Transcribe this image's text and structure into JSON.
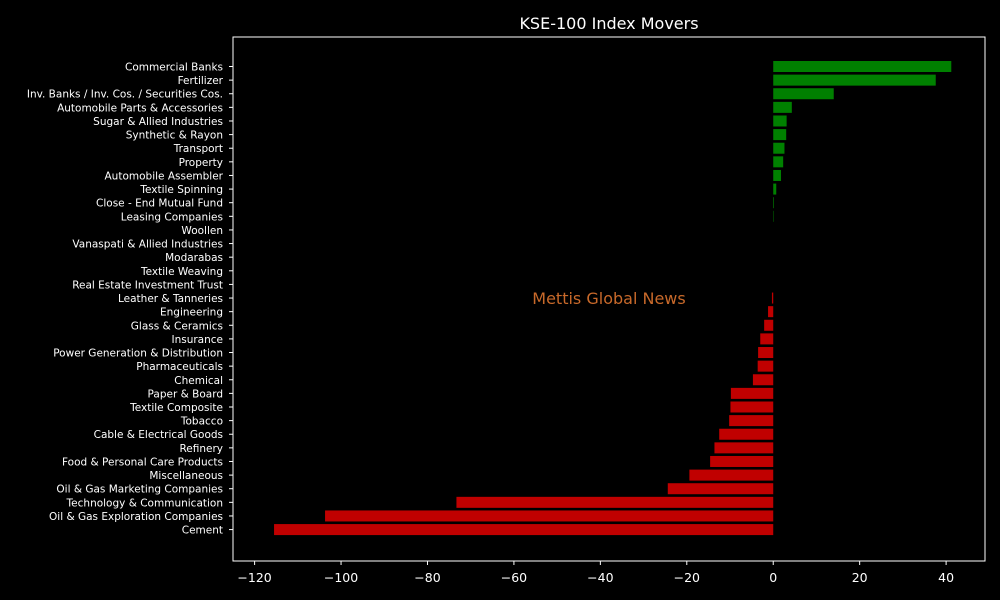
{
  "chart_data": {
    "type": "bar",
    "orientation": "horizontal",
    "title": "KSE-100 Index Movers",
    "xlabel": "",
    "ylabel": "",
    "xlim": [
      -125,
      49
    ],
    "xticks": [
      -120,
      -100,
      -80,
      -60,
      -40,
      -20,
      0,
      20,
      40
    ],
    "xtick_labels": [
      "−120",
      "−100",
      "−80",
      "−60",
      "−40",
      "−20",
      "0",
      "20",
      "40"
    ],
    "grid": false,
    "categories": [
      "Commercial Banks",
      "Fertilizer",
      "Inv. Banks / Inv. Cos. / Securities Cos.",
      "Automobile Parts & Accessories",
      "Sugar & Allied Industries",
      "Synthetic & Rayon",
      "Transport",
      "Property",
      "Automobile Assembler",
      "Textile Spinning",
      "Close - End Mutual Fund",
      "Leasing Companies",
      "Woollen",
      "Vanaspati & Allied Industries",
      "Modarabas",
      "Textile Weaving",
      "Real Estate Investment Trust",
      "Leather & Tanneries",
      "Engineering",
      "Glass & Ceramics",
      "Insurance",
      "Power Generation & Distribution",
      "Pharmaceuticals",
      "Chemical",
      "Paper & Board",
      "Textile Composite",
      "Tobacco",
      "Cable & Electrical Goods",
      "Refinery",
      "Food & Personal Care Products",
      "Miscellaneous",
      "Oil & Gas Marketing Companies",
      "Technology & Communication",
      "Oil & Gas Exploration Companies",
      "Cement"
    ],
    "values": [
      41.2,
      37.6,
      14.0,
      4.3,
      3.1,
      3.0,
      2.6,
      2.3,
      1.8,
      0.7,
      0.15,
      0.1,
      0,
      0,
      0,
      0,
      0,
      -0.3,
      -1.2,
      -2.1,
      -3.0,
      -3.5,
      -3.6,
      -4.7,
      -9.8,
      -9.9,
      -10.2,
      -12.5,
      -13.6,
      -14.6,
      -19.4,
      -24.4,
      -73.3,
      -103.7,
      -115.5
    ],
    "colors": {
      "positive": "#008000",
      "negative": "#c00000"
    },
    "axes_color": "#ffffff",
    "background": "#000000"
  },
  "watermark": "Mettis Global News"
}
